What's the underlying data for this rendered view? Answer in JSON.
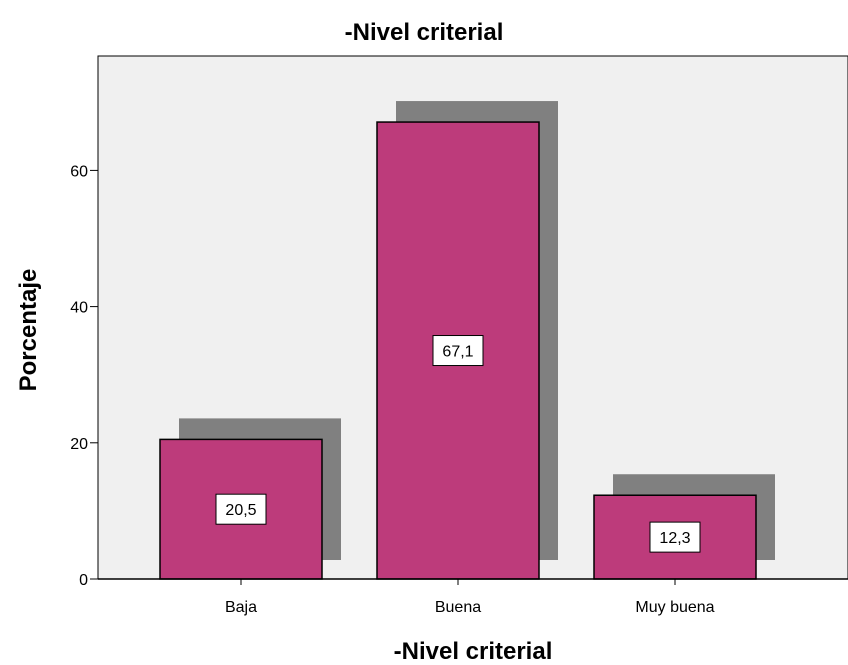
{
  "chart_data": {
    "type": "bar",
    "title": "-Nivel criterial",
    "xlabel": "-Nivel criterial",
    "ylabel": "Porcentaje",
    "categories": [
      "Baja",
      "Buena",
      "Muy buena"
    ],
    "values": [
      20.5,
      67.1,
      12.3
    ],
    "value_labels": [
      "20,5",
      "67,1",
      "12,3"
    ],
    "yticks": [
      0,
      20,
      40,
      60
    ],
    "ylim": [
      0,
      75
    ],
    "grid": false,
    "legend": "none",
    "colors": {
      "bar": "#bd3b7b",
      "shadow": "#808080",
      "plot_background": "#f0f0f0"
    }
  }
}
